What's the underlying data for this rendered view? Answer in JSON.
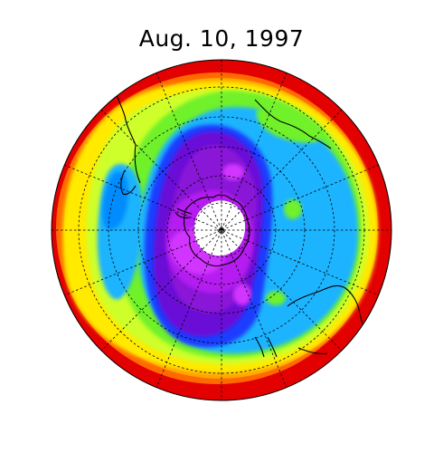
{
  "title": "Aug. 10, 1997",
  "map": {
    "projection": "south-polar-stereographic",
    "subject": "total-ozone-column",
    "band_colors": [
      "#e30000",
      "#ff6a00",
      "#ffa200",
      "#ffea00",
      "#ceff2a",
      "#6ff12b",
      "#35e04a",
      "#1fb4ff",
      "#008cff",
      "#1a3dff",
      "#6a10d6",
      "#8a18d8",
      "#b41cf0",
      "#d236ff",
      "#ffffff"
    ],
    "graticule": "dashed-black",
    "coastlines": "black",
    "pole_marker": "plus"
  }
}
